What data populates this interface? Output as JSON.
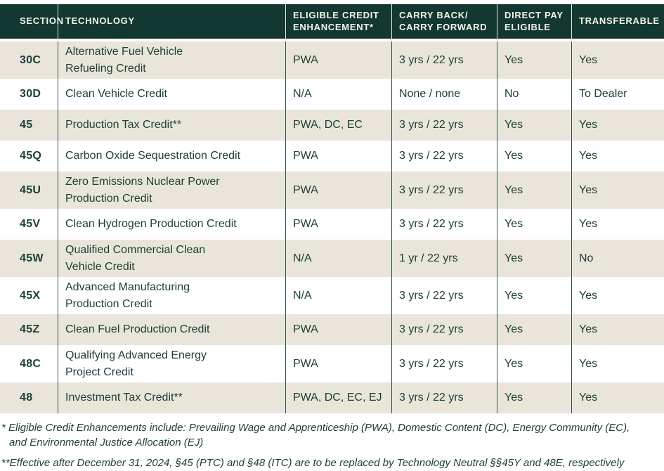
{
  "header": {
    "columns": [
      "SECTION",
      "TECHNOLOGY",
      "ELIGIBLE CREDIT\nENHANCEMENT*",
      "CARRY BACK/\nCARRY FORWARD",
      "DIRECT PAY\nELIGIBLE",
      "TRANSFERABLE"
    ]
  },
  "rows": [
    {
      "section": "30C",
      "technology": "Alternative Fuel Vehicle\nRefueling Credit",
      "enhancement": "PWA",
      "carry": "3 yrs / 22 yrs",
      "direct_pay": "Yes",
      "transferable": "Yes"
    },
    {
      "section": "30D",
      "technology": "Clean Vehicle Credit",
      "enhancement": "N/A",
      "carry": "None / none",
      "direct_pay": "No",
      "transferable": "To Dealer"
    },
    {
      "section": "45",
      "technology": "Production Tax Credit**",
      "enhancement": "PWA, DC, EC",
      "carry": "3 yrs / 22 yrs",
      "direct_pay": "Yes",
      "transferable": "Yes"
    },
    {
      "section": "45Q",
      "technology": "Carbon Oxide Sequestration Credit",
      "enhancement": "PWA",
      "carry": "3 yrs / 22 yrs",
      "direct_pay": "Yes",
      "transferable": "Yes"
    },
    {
      "section": "45U",
      "technology": "Zero Emissions Nuclear Power\nProduction Credit",
      "enhancement": "PWA",
      "carry": "3 yrs / 22 yrs",
      "direct_pay": "Yes",
      "transferable": "Yes"
    },
    {
      "section": "45V",
      "technology": "Clean Hydrogen Production Credit",
      "enhancement": "PWA",
      "carry": "3 yrs / 22 yrs",
      "direct_pay": "Yes",
      "transferable": "Yes"
    },
    {
      "section": "45W",
      "technology": "Qualified Commercial Clean\nVehicle Credit",
      "enhancement": "N/A",
      "carry": "1 yr / 22 yrs",
      "direct_pay": "Yes",
      "transferable": "No"
    },
    {
      "section": "45X",
      "technology": "Advanced Manufacturing\nProduction Credit",
      "enhancement": "N/A",
      "carry": "3 yrs / 22 yrs",
      "direct_pay": "Yes",
      "transferable": "Yes"
    },
    {
      "section": "45Z",
      "technology": "Clean Fuel Production Credit",
      "enhancement": "PWA",
      "carry": "3 yrs / 22 yrs",
      "direct_pay": "Yes",
      "transferable": "Yes"
    },
    {
      "section": "48C",
      "technology": "Qualifying Advanced Energy\nProject Credit",
      "enhancement": "PWA",
      "carry": "3 yrs / 22 yrs",
      "direct_pay": "Yes",
      "transferable": "Yes"
    },
    {
      "section": "48",
      "technology": "Investment Tax Credit**",
      "enhancement": "PWA, DC, EC, EJ",
      "carry": "3 yrs / 22 yrs",
      "direct_pay": "Yes",
      "transferable": "Yes"
    }
  ],
  "footnotes": [
    "* Eligible Credit Enhancements include: Prevailing Wage and Apprenticeship (PWA), Domestic Content (DC), Energy Community (EC),\nand Environmental Justice Allocation (EJ)",
    "**Effective after December 31, 2024, §45 (PTC) and §48 (ITC) are to be replaced by Technology Neutral §§45Y and 48E, respectively"
  ],
  "colors": {
    "header_bg": "#123831",
    "header_text": "#f7f3ea",
    "row_stripe": "#e9e5da",
    "body_text": "#1d4039",
    "divider": "#2e544c"
  }
}
